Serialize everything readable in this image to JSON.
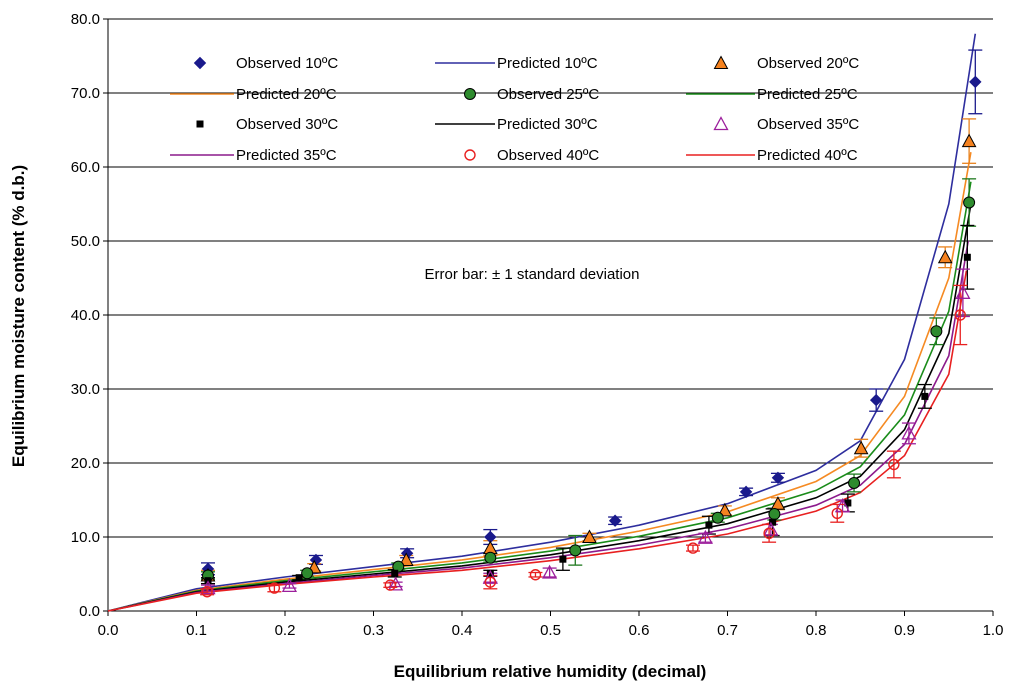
{
  "chart_data": {
    "type": "scatter",
    "xlabel": "Equilibrium relative humidity (decimal)",
    "ylabel": "Equilibrium moisture content (% d.b.)",
    "xlim": [
      0.0,
      1.0
    ],
    "ylim": [
      0.0,
      80.0
    ],
    "x_ticks": [
      "0.0",
      "0.1",
      "0.2",
      "0.3",
      "0.4",
      "0.5",
      "0.6",
      "0.7",
      "0.8",
      "0.9",
      "1.0"
    ],
    "y_ticks": [
      "0.0",
      "10.0",
      "20.0",
      "30.0",
      "40.0",
      "50.0",
      "60.0",
      "70.0",
      "80.0"
    ],
    "grid": "horizontal",
    "legend_position": "top",
    "annotation": "Error bar: ± 1 standard deviation",
    "series": [
      {
        "name": "Observed 10ºC",
        "kind": "observed",
        "marker": "diamond",
        "color": "#1a1a8c",
        "points": [
          [
            0.113,
            5.7,
            0.8
          ],
          [
            0.235,
            6.9,
            0.6
          ],
          [
            0.338,
            7.8,
            0.6
          ],
          [
            0.432,
            10.0,
            1.0
          ],
          [
            0.573,
            12.2,
            0.5
          ],
          [
            0.721,
            16.1,
            0.5
          ],
          [
            0.757,
            18.0,
            0.6
          ],
          [
            0.868,
            28.5,
            1.5
          ],
          [
            0.98,
            71.5,
            4.3
          ]
        ]
      },
      {
        "name": "Predicted 10ºC",
        "kind": "predicted",
        "color": "#2e2e9e",
        "points": [
          [
            0.0,
            0.0
          ],
          [
            0.1,
            3.0
          ],
          [
            0.2,
            4.6
          ],
          [
            0.3,
            6.0
          ],
          [
            0.4,
            7.4
          ],
          [
            0.5,
            9.3
          ],
          [
            0.6,
            11.6
          ],
          [
            0.7,
            14.5
          ],
          [
            0.8,
            19.0
          ],
          [
            0.85,
            23.0
          ],
          [
            0.9,
            34.0
          ],
          [
            0.95,
            55.0
          ],
          [
            0.98,
            78.0
          ]
        ]
      },
      {
        "name": "Observed 20ºC",
        "kind": "observed",
        "marker": "triangle",
        "color": "#e8821e",
        "points": [
          [
            0.113,
            4.8,
            0.7
          ],
          [
            0.233,
            5.9,
            0.5
          ],
          [
            0.337,
            6.9,
            0.6
          ],
          [
            0.432,
            8.5,
            1.0
          ],
          [
            0.544,
            10.0,
            0.5
          ],
          [
            0.697,
            13.6,
            0.6
          ],
          [
            0.757,
            14.5,
            0.8
          ],
          [
            0.851,
            22.0,
            1.2
          ],
          [
            0.946,
            47.8,
            1.4
          ],
          [
            0.973,
            63.5,
            3.0
          ]
        ]
      },
      {
        "name": "Predicted 20ºC",
        "kind": "predicted",
        "color": "#f58a23",
        "points": [
          [
            0.0,
            0.0
          ],
          [
            0.1,
            2.8
          ],
          [
            0.2,
            4.3
          ],
          [
            0.3,
            5.6
          ],
          [
            0.4,
            6.9
          ],
          [
            0.5,
            8.6
          ],
          [
            0.6,
            10.8
          ],
          [
            0.7,
            13.4
          ],
          [
            0.8,
            17.5
          ],
          [
            0.85,
            21.0
          ],
          [
            0.9,
            29.0
          ],
          [
            0.95,
            45.0
          ],
          [
            0.975,
            62.0
          ]
        ]
      },
      {
        "name": "Observed 25ºC",
        "kind": "observed",
        "marker": "circle",
        "color": "#1f7a1f",
        "points": [
          [
            0.113,
            4.8,
            0.5
          ],
          [
            0.225,
            5.1,
            0.4
          ],
          [
            0.328,
            6.0,
            0.5
          ],
          [
            0.432,
            7.2,
            0.6
          ],
          [
            0.528,
            8.2,
            2.0
          ],
          [
            0.689,
            12.6,
            0.6
          ],
          [
            0.753,
            13.1,
            0.8
          ],
          [
            0.843,
            17.3,
            1.2
          ],
          [
            0.936,
            37.8,
            1.8
          ],
          [
            0.973,
            55.2,
            3.2
          ]
        ]
      },
      {
        "name": "Predicted 25ºC",
        "kind": "predicted",
        "color": "#1a8c1a",
        "points": [
          [
            0.0,
            0.0
          ],
          [
            0.1,
            2.7
          ],
          [
            0.2,
            4.1
          ],
          [
            0.3,
            5.3
          ],
          [
            0.4,
            6.5
          ],
          [
            0.5,
            8.1
          ],
          [
            0.6,
            10.1
          ],
          [
            0.7,
            12.6
          ],
          [
            0.8,
            16.3
          ],
          [
            0.85,
            19.5
          ],
          [
            0.9,
            26.5
          ],
          [
            0.95,
            40.5
          ],
          [
            0.975,
            58.0
          ]
        ]
      },
      {
        "name": "Observed 30ºC",
        "kind": "observed",
        "marker": "square",
        "color": "#000000",
        "points": [
          [
            0.113,
            4.1,
            0.4
          ],
          [
            0.216,
            4.5,
            0.3
          ],
          [
            0.324,
            5.1,
            0.5
          ],
          [
            0.432,
            5.1,
            0.4
          ],
          [
            0.514,
            7.0,
            1.5
          ],
          [
            0.679,
            11.6,
            1.2
          ],
          [
            0.751,
            12.0,
            1.8
          ],
          [
            0.836,
            14.6,
            1.2
          ],
          [
            0.923,
            29.0,
            1.6
          ],
          [
            0.971,
            47.8,
            4.3
          ]
        ]
      },
      {
        "name": "Predicted 30ºC",
        "kind": "predicted",
        "color": "#000000",
        "points": [
          [
            0.0,
            0.0
          ],
          [
            0.1,
            2.6
          ],
          [
            0.2,
            3.9
          ],
          [
            0.3,
            5.0
          ],
          [
            0.4,
            6.1
          ],
          [
            0.5,
            7.6
          ],
          [
            0.6,
            9.5
          ],
          [
            0.7,
            11.8
          ],
          [
            0.8,
            15.3
          ],
          [
            0.85,
            18.2
          ],
          [
            0.9,
            24.5
          ],
          [
            0.95,
            37.5
          ],
          [
            0.975,
            55.0
          ]
        ]
      },
      {
        "name": "Observed 35ºC",
        "kind": "observed",
        "marker": "triangle-open",
        "color": "#9c1f9c",
        "points": [
          [
            0.113,
            3.1,
            0.4
          ],
          [
            0.205,
            3.4,
            0.3
          ],
          [
            0.325,
            3.6,
            0.3
          ],
          [
            0.432,
            4.5,
            0.6
          ],
          [
            0.499,
            5.2,
            0.6
          ],
          [
            0.675,
            9.9,
            0.6
          ],
          [
            0.749,
            11.0,
            0.7
          ],
          [
            0.83,
            14.2,
            0.8
          ],
          [
            0.905,
            24.0,
            1.4
          ],
          [
            0.966,
            43.0,
            3.2
          ]
        ]
      },
      {
        "name": "Predicted 35ºC",
        "kind": "predicted",
        "color": "#8c1a8c",
        "points": [
          [
            0.0,
            0.0
          ],
          [
            0.1,
            2.5
          ],
          [
            0.2,
            3.7
          ],
          [
            0.3,
            4.8
          ],
          [
            0.4,
            5.8
          ],
          [
            0.5,
            7.2
          ],
          [
            0.6,
            8.9
          ],
          [
            0.7,
            11.1
          ],
          [
            0.8,
            14.3
          ],
          [
            0.85,
            17.0
          ],
          [
            0.9,
            22.5
          ],
          [
            0.95,
            34.5
          ],
          [
            0.972,
            50.0
          ]
        ]
      },
      {
        "name": "Observed 40ºC",
        "kind": "observed",
        "marker": "circle-open",
        "color": "#e82020",
        "points": [
          [
            0.112,
            2.6,
            0.4
          ],
          [
            0.188,
            3.1,
            0.5
          ],
          [
            0.319,
            3.5,
            0.3
          ],
          [
            0.432,
            3.9,
            0.9
          ],
          [
            0.483,
            4.9,
            0.3
          ],
          [
            0.661,
            8.5,
            0.4
          ],
          [
            0.747,
            10.5,
            1.2
          ],
          [
            0.824,
            13.2,
            1.2
          ],
          [
            0.888,
            19.8,
            1.8
          ],
          [
            0.963,
            40.0,
            4.0
          ]
        ]
      },
      {
        "name": "Predicted 40ºC",
        "kind": "predicted",
        "color": "#e82020",
        "points": [
          [
            0.0,
            0.0
          ],
          [
            0.1,
            2.4
          ],
          [
            0.2,
            3.6
          ],
          [
            0.3,
            4.6
          ],
          [
            0.4,
            5.5
          ],
          [
            0.5,
            6.8
          ],
          [
            0.6,
            8.4
          ],
          [
            0.7,
            10.4
          ],
          [
            0.8,
            13.5
          ],
          [
            0.85,
            16.0
          ],
          [
            0.9,
            21.0
          ],
          [
            0.95,
            32.0
          ],
          [
            0.97,
            46.0
          ]
        ]
      }
    ]
  }
}
